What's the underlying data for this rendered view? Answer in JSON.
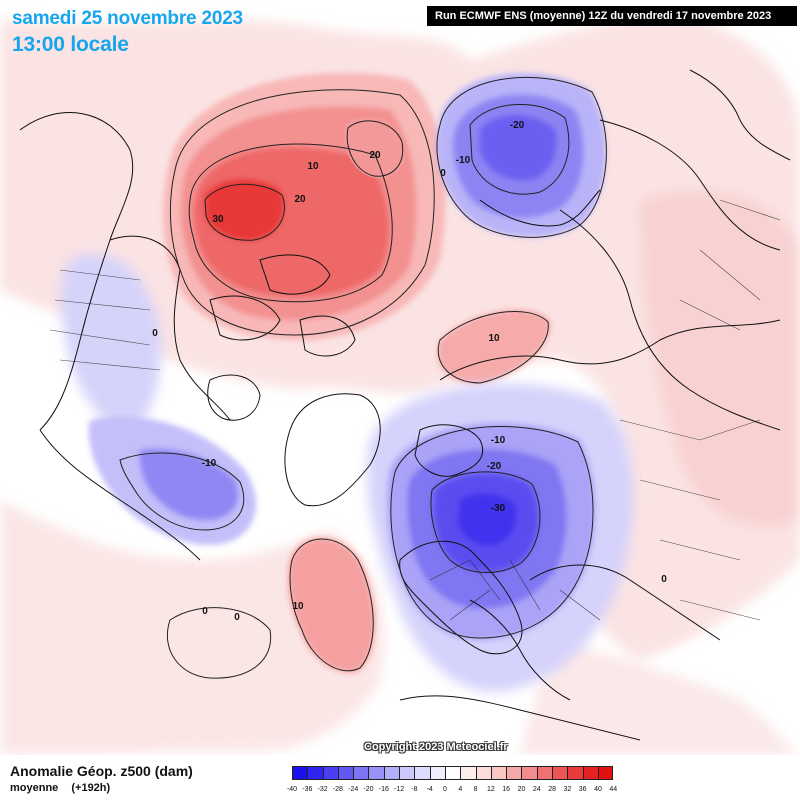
{
  "header": {
    "date": "samedi 25 novembre 2023",
    "time": "13:00 locale",
    "run": "Run ECMWF ENS (moyenne) 12Z du vendredi 17 novembre 2023"
  },
  "copyright": "Copyright 2023 Meteociel.fr",
  "footer": {
    "title": "Anomalie Géop. z500 (dam)",
    "subtitle_a": "moyenne",
    "subtitle_b": "(+192h)"
  },
  "legend": {
    "ticks": [
      "-40",
      "-36",
      "-32",
      "-28",
      "-24",
      "-20",
      "-16",
      "-12",
      "-8",
      "-4",
      "0",
      "4",
      "8",
      "12",
      "16",
      "20",
      "24",
      "28",
      "32",
      "36",
      "40",
      "44"
    ],
    "colors": [
      "#1c10ee",
      "#3024f0",
      "#4a40f2",
      "#6259f3",
      "#7c75f5",
      "#9992f7",
      "#b4aff9",
      "#ccc8fb",
      "#dedcfc",
      "#efeefd",
      "#ffffff",
      "#fdeeee",
      "#fbdcdc",
      "#f9c5c5",
      "#f6a9a9",
      "#f38d8d",
      "#f07171",
      "#ed5555",
      "#e93b3b",
      "#e52222",
      "#e21010"
    ]
  },
  "contour_labels": [
    {
      "text": "30"
    },
    {
      "text": "20"
    },
    {
      "text": "20"
    },
    {
      "text": "10"
    },
    {
      "text": "-20"
    },
    {
      "text": "-10"
    },
    {
      "text": "0"
    },
    {
      "text": "0"
    },
    {
      "text": "10"
    },
    {
      "text": "-10"
    },
    {
      "text": "-10"
    },
    {
      "text": "-20"
    },
    {
      "text": "-30"
    },
    {
      "text": "0"
    },
    {
      "text": "10"
    },
    {
      "text": "0"
    },
    {
      "text": "0"
    }
  ]
}
